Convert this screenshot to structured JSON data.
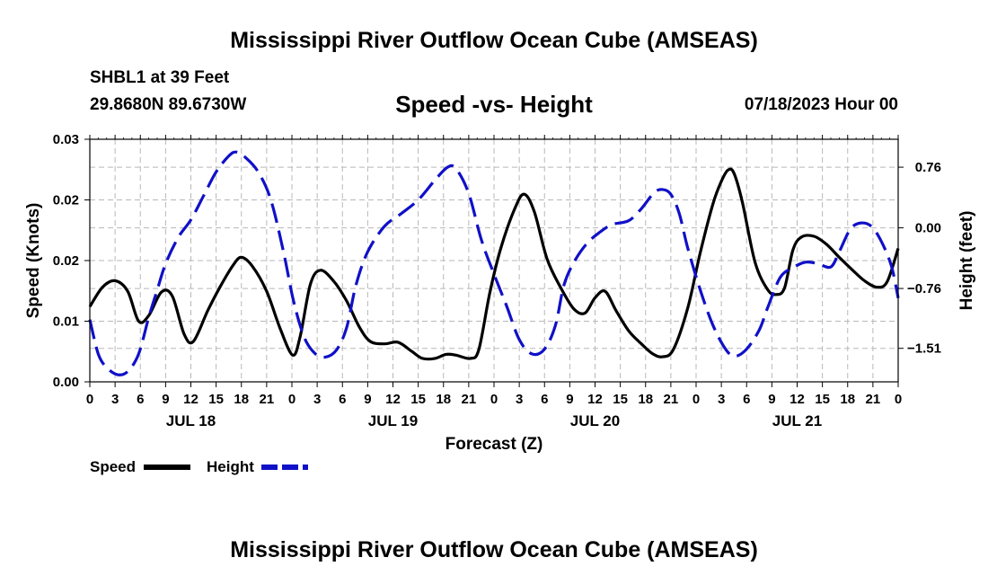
{
  "header": {
    "title": "Mississippi River Outflow Ocean Cube (AMSEAS)",
    "station": "SHBL1 at 39 Feet",
    "location": "29.8680N  89.6730W",
    "date": "07/18/2023 Hour 00"
  },
  "footer": {
    "title": "Mississippi River Outflow Ocean Cube (AMSEAS)"
  },
  "colors": {
    "speed": "#000000",
    "height": "#1010c8",
    "grid": "#b8b8b8"
  },
  "chart_data": {
    "type": "line",
    "title": "Speed -vs- Height",
    "xlabel": "Forecast (Z)",
    "ylabel_left": "Speed (Knots)",
    "ylabel_right": "Height (feet)",
    "x_range_hours": [
      0,
      96
    ],
    "ylim_left": [
      0.0,
      0.03
    ],
    "ylim_right": [
      -1.93,
      1.11
    ],
    "x_ticks": [
      {
        "h": 0,
        "label": "0"
      },
      {
        "h": 3,
        "label": "3"
      },
      {
        "h": 6,
        "label": "6"
      },
      {
        "h": 9,
        "label": "9"
      },
      {
        "h": 12,
        "label": "12"
      },
      {
        "h": 15,
        "label": "15"
      },
      {
        "h": 18,
        "label": "18"
      },
      {
        "h": 21,
        "label": "21"
      },
      {
        "h": 24,
        "label": "0"
      },
      {
        "h": 27,
        "label": "3"
      },
      {
        "h": 30,
        "label": "6"
      },
      {
        "h": 33,
        "label": "9"
      },
      {
        "h": 36,
        "label": "12"
      },
      {
        "h": 39,
        "label": "15"
      },
      {
        "h": 42,
        "label": "18"
      },
      {
        "h": 45,
        "label": "21"
      },
      {
        "h": 48,
        "label": "0"
      },
      {
        "h": 51,
        "label": "3"
      },
      {
        "h": 54,
        "label": "6"
      },
      {
        "h": 57,
        "label": "9"
      },
      {
        "h": 60,
        "label": "12"
      },
      {
        "h": 63,
        "label": "15"
      },
      {
        "h": 66,
        "label": "18"
      },
      {
        "h": 69,
        "label": "21"
      },
      {
        "h": 72,
        "label": "0"
      },
      {
        "h": 75,
        "label": "3"
      },
      {
        "h": 78,
        "label": "6"
      },
      {
        "h": 81,
        "label": "9"
      },
      {
        "h": 84,
        "label": "12"
      },
      {
        "h": 87,
        "label": "15"
      },
      {
        "h": 90,
        "label": "18"
      },
      {
        "h": 93,
        "label": "21"
      },
      {
        "h": 96,
        "label": "0"
      }
    ],
    "day_labels": [
      {
        "h": 12,
        "label": "JUL 18"
      },
      {
        "h": 36,
        "label": "JUL 19"
      },
      {
        "h": 60,
        "label": "JUL 20"
      },
      {
        "h": 84,
        "label": "JUL 21"
      }
    ],
    "left_ticks": [
      {
        "v": 0.0,
        "label": "0.00"
      },
      {
        "v": 0.0075,
        "label": "0.01"
      },
      {
        "v": 0.015,
        "label": "0.02"
      },
      {
        "v": 0.0225,
        "label": "0.02"
      },
      {
        "v": 0.03,
        "label": "0.03"
      }
    ],
    "right_ticks": [
      {
        "v": 0.76,
        "label": "0.76"
      },
      {
        "v": 0.0,
        "label": "0.00"
      },
      {
        "v": -0.76,
        "label": "−0.76"
      },
      {
        "v": -1.51,
        "label": "−1.51"
      }
    ],
    "series": [
      {
        "name": "Speed",
        "axis": "left",
        "style": "solid",
        "points": [
          [
            0,
            0.0093
          ],
          [
            1.5,
            0.0117
          ],
          [
            3,
            0.0125
          ],
          [
            4.5,
            0.0112
          ],
          [
            5.8,
            0.0075
          ],
          [
            7,
            0.0082
          ],
          [
            8.5,
            0.0111
          ],
          [
            9.8,
            0.0106
          ],
          [
            11.2,
            0.0059
          ],
          [
            12.3,
            0.005
          ],
          [
            14,
            0.0088
          ],
          [
            15.5,
            0.0118
          ],
          [
            17,
            0.0144
          ],
          [
            18,
            0.0154
          ],
          [
            19.3,
            0.0143
          ],
          [
            21,
            0.0112
          ],
          [
            22.6,
            0.0066
          ],
          [
            24.1,
            0.0033
          ],
          [
            25,
            0.0057
          ],
          [
            26.2,
            0.0121
          ],
          [
            27.4,
            0.0138
          ],
          [
            29,
            0.0124
          ],
          [
            30.5,
            0.01
          ],
          [
            32,
            0.0068
          ],
          [
            33.3,
            0.005
          ],
          [
            35,
            0.0047
          ],
          [
            36.6,
            0.0049
          ],
          [
            38.2,
            0.0038
          ],
          [
            39.5,
            0.0029
          ],
          [
            41,
            0.0029
          ],
          [
            42.3,
            0.0034
          ],
          [
            43.5,
            0.0033
          ],
          [
            45.2,
            0.0029
          ],
          [
            46.2,
            0.004
          ],
          [
            47.5,
            0.011
          ],
          [
            48.8,
            0.0165
          ],
          [
            50.5,
            0.0215
          ],
          [
            51.6,
            0.0232
          ],
          [
            52.8,
            0.021
          ],
          [
            54.3,
            0.0152
          ],
          [
            56,
            0.0115
          ],
          [
            57.5,
            0.009
          ],
          [
            58.8,
            0.0085
          ],
          [
            60,
            0.0104
          ],
          [
            61.2,
            0.0112
          ],
          [
            62.5,
            0.0088
          ],
          [
            64,
            0.0063
          ],
          [
            65.5,
            0.0047
          ],
          [
            66.8,
            0.0035
          ],
          [
            68,
            0.0031
          ],
          [
            69.3,
            0.004
          ],
          [
            71,
            0.0091
          ],
          [
            72.5,
            0.016
          ],
          [
            74,
            0.022
          ],
          [
            75,
            0.0248
          ],
          [
            75.8,
            0.0262
          ],
          [
            76.5,
            0.0258
          ],
          [
            77.5,
            0.0222
          ],
          [
            79,
            0.0148
          ],
          [
            80.5,
            0.0114
          ],
          [
            81.5,
            0.0108
          ],
          [
            82.5,
            0.0116
          ],
          [
            83.5,
            0.0163
          ],
          [
            84.5,
            0.0179
          ],
          [
            86,
            0.018
          ],
          [
            87.5,
            0.017
          ],
          [
            89,
            0.0154
          ],
          [
            90.5,
            0.0139
          ],
          [
            92,
            0.0125
          ],
          [
            93.5,
            0.0117
          ],
          [
            94.7,
            0.0124
          ],
          [
            96,
            0.0165
          ]
        ]
      },
      {
        "name": "Height",
        "axis": "right",
        "style": "dashed",
        "points": [
          [
            0,
            -1.15
          ],
          [
            1,
            -1.58
          ],
          [
            2,
            -1.75
          ],
          [
            3.3,
            -1.84
          ],
          [
            4.5,
            -1.8
          ],
          [
            5.8,
            -1.58
          ],
          [
            7,
            -1.12
          ],
          [
            8,
            -0.78
          ],
          [
            9,
            -0.45
          ],
          [
            10.5,
            -0.12
          ],
          [
            12,
            0.1
          ],
          [
            13.5,
            0.4
          ],
          [
            15,
            0.7
          ],
          [
            16.5,
            0.9
          ],
          [
            17.4,
            0.95
          ],
          [
            18.5,
            0.88
          ],
          [
            20,
            0.7
          ],
          [
            21.5,
            0.35
          ],
          [
            23,
            -0.3
          ],
          [
            24.2,
            -0.92
          ],
          [
            25.5,
            -1.38
          ],
          [
            26.8,
            -1.58
          ],
          [
            28,
            -1.62
          ],
          [
            29.3,
            -1.53
          ],
          [
            30.5,
            -1.25
          ],
          [
            31.6,
            -0.72
          ],
          [
            33,
            -0.3
          ],
          [
            35,
            0.02
          ],
          [
            37,
            0.18
          ],
          [
            39,
            0.35
          ],
          [
            41,
            0.6
          ],
          [
            42.5,
            0.76
          ],
          [
            43.5,
            0.74
          ],
          [
            45,
            0.43
          ],
          [
            46.5,
            -0.15
          ],
          [
            48,
            -0.58
          ],
          [
            49.5,
            -0.98
          ],
          [
            51,
            -1.4
          ],
          [
            52.5,
            -1.58
          ],
          [
            54,
            -1.52
          ],
          [
            55.3,
            -1.22
          ],
          [
            56.3,
            -0.72
          ],
          [
            57.5,
            -0.43
          ],
          [
            59,
            -0.2
          ],
          [
            60.5,
            -0.06
          ],
          [
            62,
            0.04
          ],
          [
            64,
            0.09
          ],
          [
            65.5,
            0.24
          ],
          [
            67,
            0.44
          ],
          [
            68,
            0.48
          ],
          [
            69,
            0.42
          ],
          [
            70,
            0.18
          ],
          [
            71,
            -0.25
          ],
          [
            72.5,
            -0.78
          ],
          [
            74,
            -1.22
          ],
          [
            75.5,
            -1.52
          ],
          [
            76.6,
            -1.61
          ],
          [
            78,
            -1.52
          ],
          [
            79.5,
            -1.28
          ],
          [
            80.5,
            -1.0
          ],
          [
            82,
            -0.62
          ],
          [
            83.5,
            -0.5
          ],
          [
            85,
            -0.43
          ],
          [
            86.5,
            -0.45
          ],
          [
            88,
            -0.49
          ],
          [
            89,
            -0.3
          ],
          [
            90.3,
            -0.02
          ],
          [
            91.5,
            0.06
          ],
          [
            92.8,
            0.02
          ],
          [
            94,
            -0.17
          ],
          [
            95.2,
            -0.48
          ],
          [
            96,
            -0.88
          ]
        ]
      }
    ],
    "legend": [
      {
        "name": "Speed",
        "style": "solid"
      },
      {
        "name": "Height",
        "style": "dashed"
      }
    ]
  }
}
